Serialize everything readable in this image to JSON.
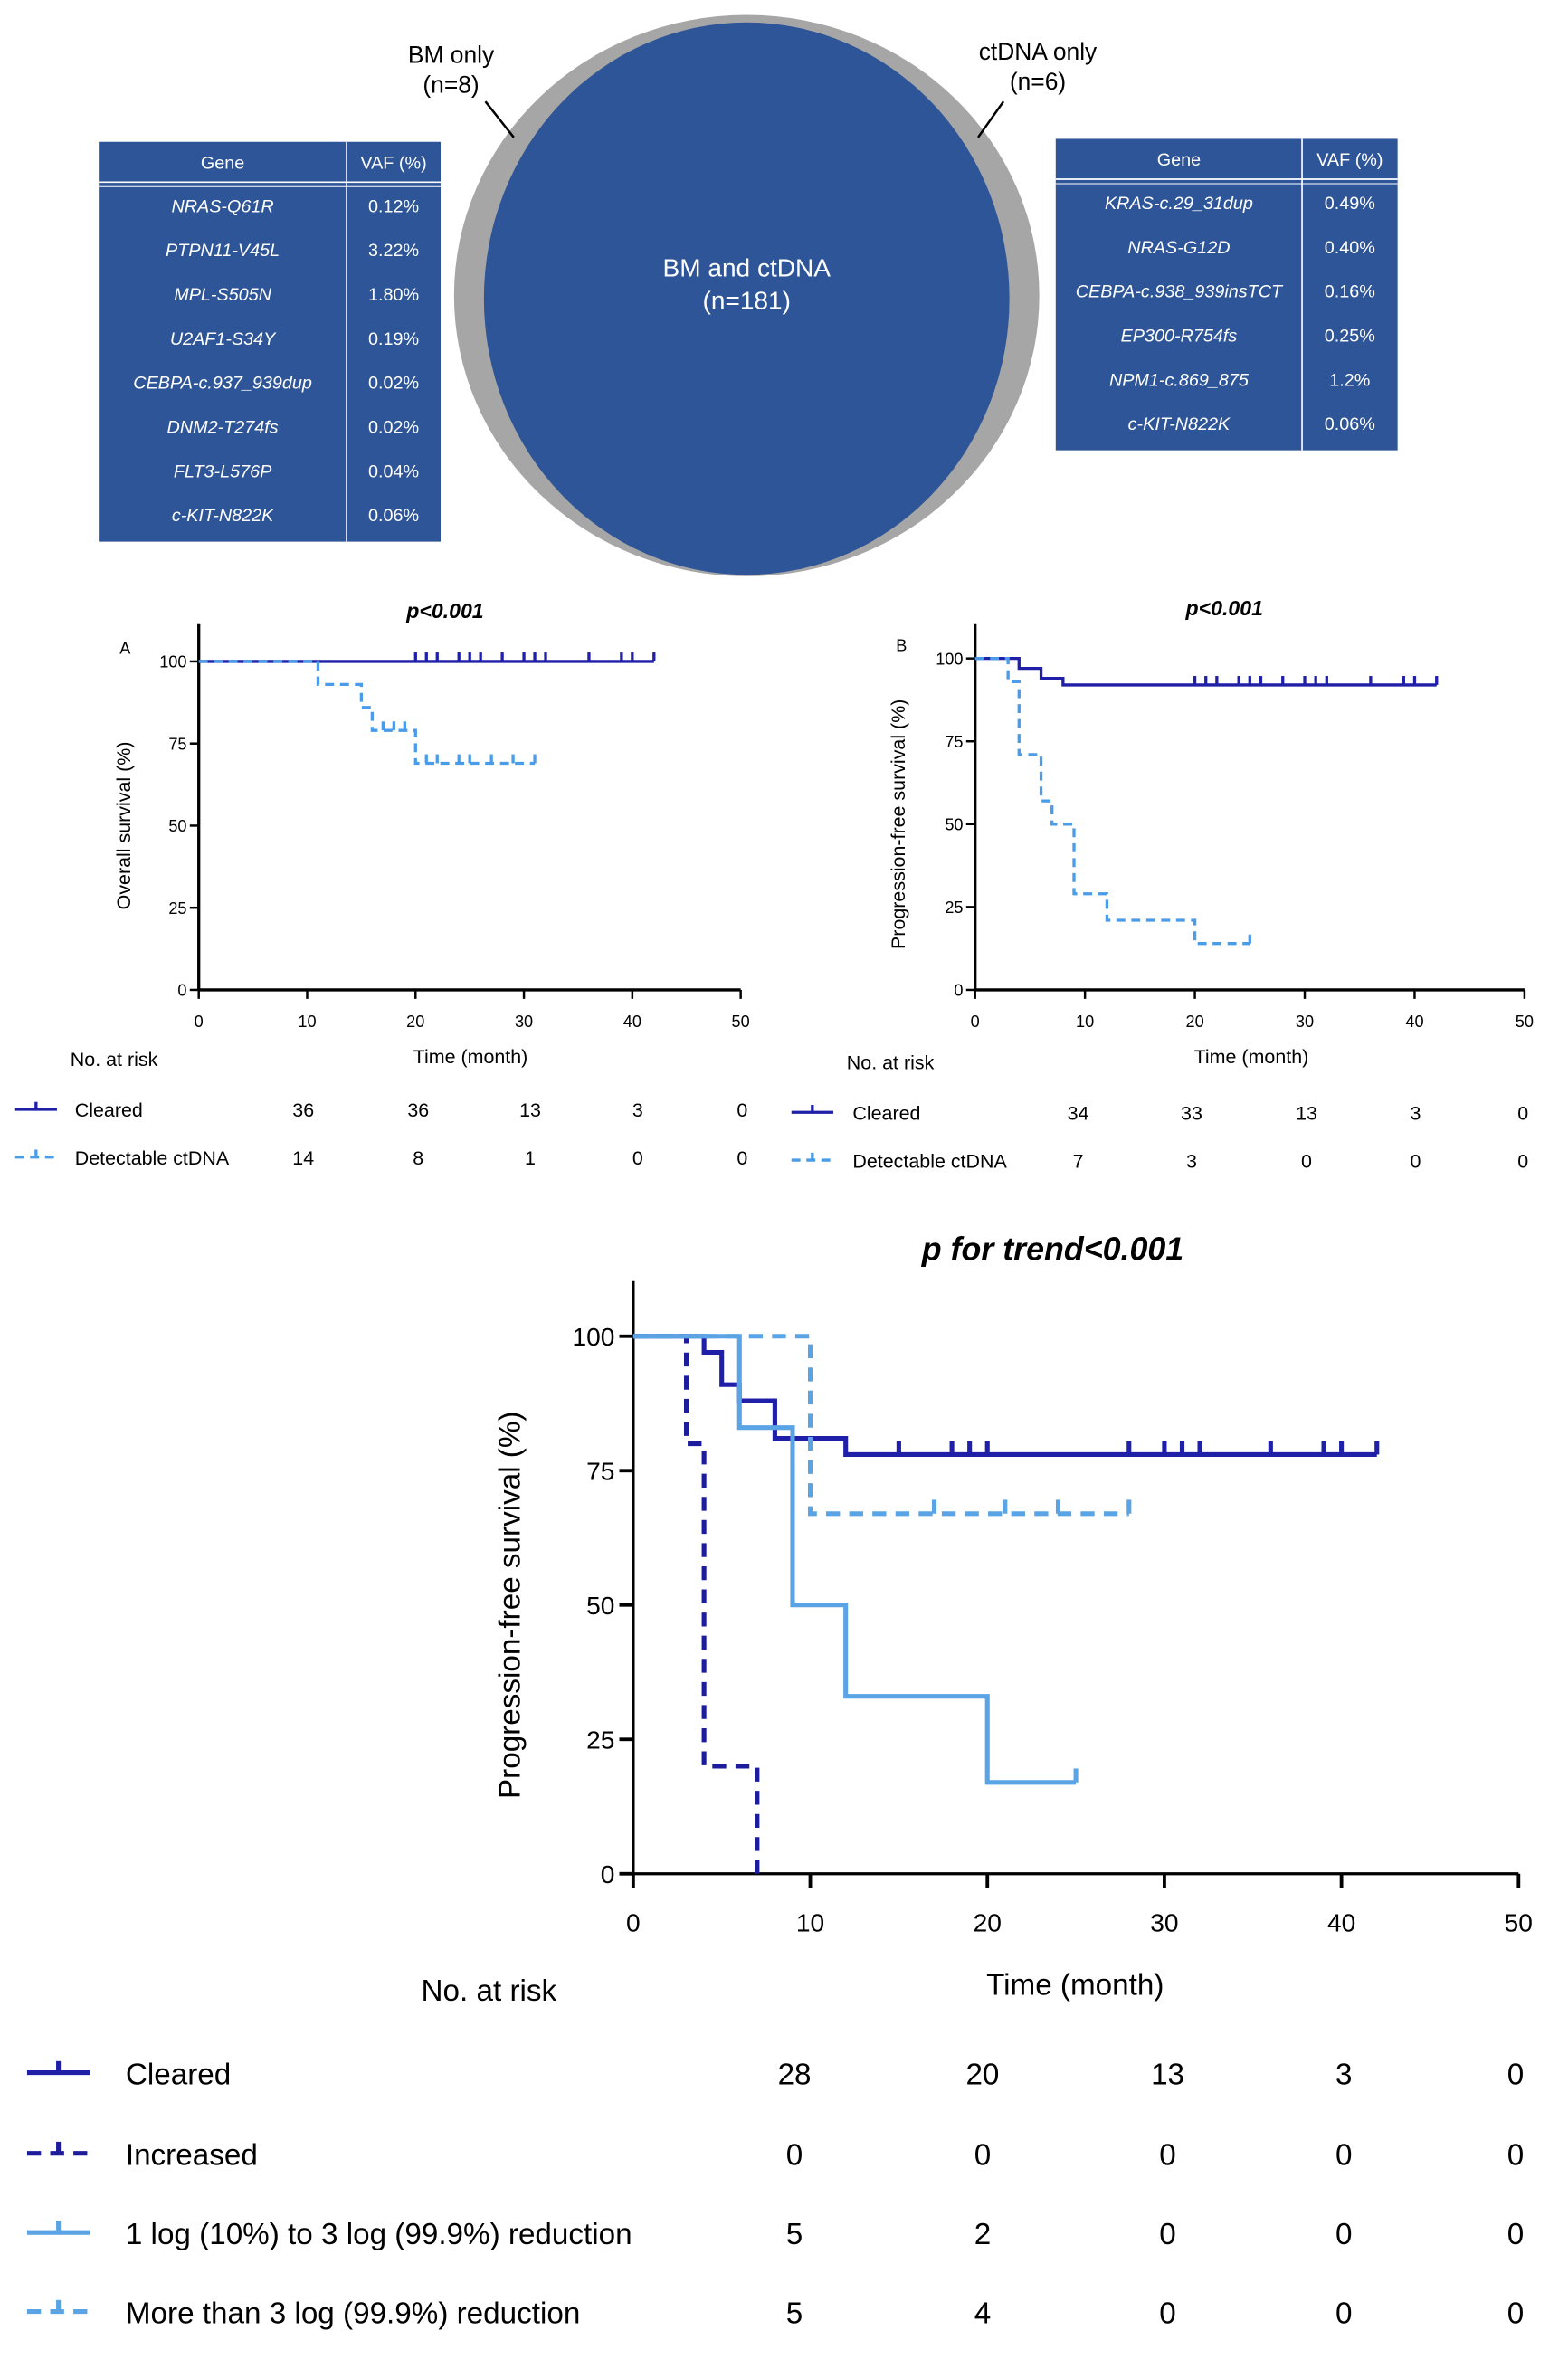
{
  "venn": {
    "bm_only_label": "BM only",
    "bm_only_n": "(n=8)",
    "ctdna_only_label": "ctDNA only",
    "ctdna_only_n": "(n=6)",
    "both_label": "BM and ctDNA",
    "both_n": "(n=181)",
    "colors": {
      "overlap": "#2e5597",
      "outer": "#a6a6a6"
    }
  },
  "bm_table": {
    "headers": [
      "Gene",
      "VAF (%)"
    ],
    "rows": [
      [
        "NRAS-Q61R",
        "0.12%"
      ],
      [
        "PTPN11-V45L",
        "3.22%"
      ],
      [
        "MPL-S505N",
        "1.80%"
      ],
      [
        "U2AF1-S34Y",
        "0.19%"
      ],
      [
        "CEBPA-c.937_939dup",
        "0.02%"
      ],
      [
        "DNM2-T274fs",
        "0.02%"
      ],
      [
        "FLT3-L576P",
        "0.04%"
      ],
      [
        "c-KIT-N822K",
        "0.06%"
      ]
    ]
  },
  "ctdna_table": {
    "headers": [
      "Gene",
      "VAF (%)"
    ],
    "rows": [
      [
        "KRAS-c.29_31dup",
        "0.49%"
      ],
      [
        "NRAS-G12D",
        "0.40%"
      ],
      [
        "CEBPA-c.938_939insTCT",
        "0.16%"
      ],
      [
        "EP300-R754fs",
        "0.25%"
      ],
      [
        "NPM1-c.869_875",
        "1.2%"
      ],
      [
        "c-KIT-N822K",
        "0.06%"
      ]
    ]
  },
  "chart_data": [
    {
      "type": "line",
      "panel": "A",
      "title": "p<0.001",
      "xlabel": "Time (month)",
      "ylabel": "Overall survival (%)",
      "xlim": [
        0,
        50
      ],
      "ylim": [
        0,
        100
      ],
      "xticks": [
        0,
        10,
        20,
        30,
        40,
        50
      ],
      "yticks": [
        0,
        25,
        50,
        75,
        100
      ],
      "risk_title": "No. at risk",
      "series": [
        {
          "name": "Cleared",
          "color": "#1f1fa8",
          "dashed": false,
          "steps": [
            [
              0,
              100
            ],
            [
              42,
              100
            ]
          ],
          "censored": [
            20,
            21,
            22,
            24,
            25,
            26,
            28,
            30,
            31,
            32,
            36,
            39,
            40,
            42
          ],
          "at_risk": [
            36,
            36,
            13,
            3,
            0
          ]
        },
        {
          "name": "Detectable ctDNA",
          "color": "#4a9be8",
          "dashed": true,
          "steps": [
            [
              0,
              100
            ],
            [
              11,
              93
            ],
            [
              15,
              86
            ],
            [
              16,
              79
            ],
            [
              20,
              69
            ],
            [
              31,
              69
            ]
          ],
          "censored": [
            17,
            18,
            19,
            21,
            22,
            24,
            25,
            27,
            29,
            31
          ],
          "at_risk": [
            14,
            8,
            1,
            0,
            0
          ]
        }
      ]
    },
    {
      "type": "line",
      "panel": "B",
      "title": "p<0.001",
      "xlabel": "Time (month)",
      "ylabel": "Progression-free survival (%)",
      "xlim": [
        0,
        50
      ],
      "ylim": [
        0,
        100
      ],
      "xticks": [
        0,
        10,
        20,
        30,
        40,
        50
      ],
      "yticks": [
        0,
        25,
        50,
        75,
        100
      ],
      "risk_title": "No. at risk",
      "series": [
        {
          "name": "Cleared",
          "color": "#1f1fa8",
          "dashed": false,
          "steps": [
            [
              0,
              100
            ],
            [
              4,
              97
            ],
            [
              6,
              94
            ],
            [
              8,
              92
            ],
            [
              42,
              92
            ]
          ],
          "censored": [
            20,
            21,
            22,
            24,
            25,
            26,
            28,
            30,
            31,
            32,
            36,
            39,
            40,
            42
          ],
          "at_risk": [
            34,
            33,
            13,
            3,
            0
          ]
        },
        {
          "name": "Detectable ctDNA",
          "color": "#4a9be8",
          "dashed": true,
          "steps": [
            [
              0,
              100
            ],
            [
              3,
              93
            ],
            [
              4,
              71
            ],
            [
              6,
              57
            ],
            [
              7,
              50
            ],
            [
              9,
              29
            ],
            [
              12,
              21
            ],
            [
              20,
              14
            ],
            [
              25,
              14
            ]
          ],
          "censored": [
            25
          ],
          "at_risk": [
            7,
            3,
            0,
            0,
            0
          ]
        }
      ]
    },
    {
      "type": "line",
      "title": "p for trend<0.001",
      "xlabel": "Time (month)",
      "ylabel": "Progression-free survival (%)",
      "xlim": [
        0,
        50
      ],
      "ylim": [
        0,
        100
      ],
      "xticks": [
        0,
        10,
        20,
        30,
        40,
        50
      ],
      "yticks": [
        0,
        25,
        50,
        75,
        100
      ],
      "risk_title": "No. at risk",
      "series": [
        {
          "name": "Cleared",
          "color": "#1f1fa8",
          "dashed": false,
          "steps": [
            [
              0,
              100
            ],
            [
              4,
              97
            ],
            [
              5,
              91
            ],
            [
              6,
              88
            ],
            [
              8,
              81
            ],
            [
              12,
              78
            ],
            [
              42,
              78
            ]
          ],
          "censored": [
            15,
            18,
            19,
            20,
            28,
            30,
            31,
            32,
            36,
            39,
            40,
            42
          ],
          "at_risk": [
            28,
            20,
            13,
            3,
            0
          ]
        },
        {
          "name": "Increased",
          "color": "#1c1c9c",
          "dashed": true,
          "steps": [
            [
              0,
              100
            ],
            [
              3,
              80
            ],
            [
              4,
              20
            ],
            [
              7,
              0
            ]
          ],
          "censored": [],
          "at_risk": [
            0,
            0,
            0,
            0,
            0
          ]
        },
        {
          "name": "1 log (10%) to 3 log (99.9%) reduction",
          "color": "#5aa4e6",
          "dashed": false,
          "steps": [
            [
              0,
              100
            ],
            [
              6,
              83
            ],
            [
              9,
              50
            ],
            [
              12,
              33
            ],
            [
              20,
              17
            ],
            [
              25,
              17
            ]
          ],
          "censored": [
            25
          ],
          "at_risk": [
            5,
            2,
            0,
            0,
            0
          ]
        },
        {
          "name": "More than 3 log (99.9%) reduction",
          "color": "#5aa4e6",
          "dashed": true,
          "steps": [
            [
              0,
              100
            ],
            [
              9,
              100
            ],
            [
              10,
              67
            ],
            [
              28,
              67
            ]
          ],
          "censored": [
            17,
            21,
            24,
            28
          ],
          "at_risk": [
            5,
            4,
            0,
            0,
            0
          ]
        }
      ]
    }
  ]
}
